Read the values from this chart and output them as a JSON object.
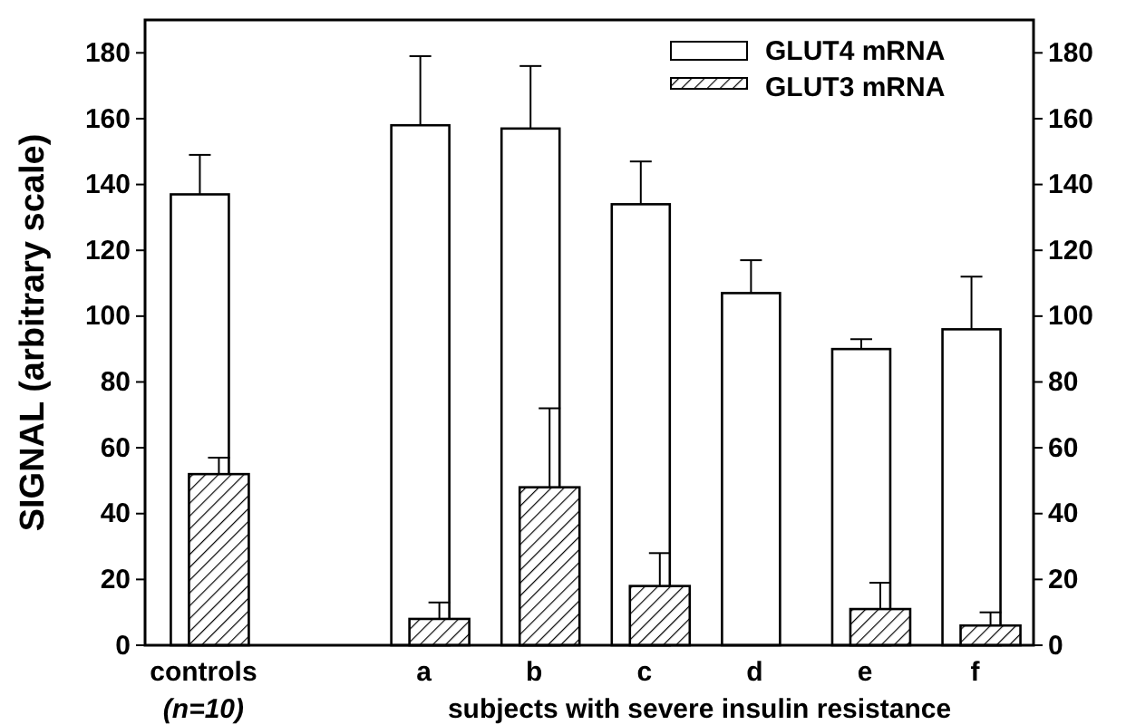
{
  "chart_data": {
    "type": "bar",
    "categories": [
      "controls",
      null,
      "a",
      "b",
      "c",
      "d",
      "e",
      "f"
    ],
    "series": [
      {
        "name": "GLUT4 mRNA",
        "color": "#ffffff",
        "values": [
          137,
          null,
          158,
          157,
          134,
          107,
          90,
          96
        ],
        "errors": [
          [
            137,
            149
          ],
          null,
          [
            158,
            179
          ],
          [
            157,
            176
          ],
          [
            134,
            147
          ],
          [
            107,
            117
          ],
          [
            90,
            93
          ],
          [
            96,
            112
          ]
        ]
      },
      {
        "name": "GLUT3 mRNA",
        "color": "#000000",
        "values": [
          52,
          null,
          8,
          48,
          18,
          null,
          11,
          6
        ],
        "errors": [
          [
            52,
            57
          ],
          null,
          [
            8,
            13
          ],
          [
            48,
            72
          ],
          [
            18,
            28
          ],
          null,
          [
            11,
            19
          ],
          [
            6,
            10
          ]
        ]
      }
    ],
    "ylabel": "SIGNAL (arbitrary scale)",
    "xlabel": "subjects with severe insulin resistance",
    "annotations": [
      "(n=10)"
    ],
    "ylim": [
      0,
      190
    ],
    "yticks": [
      0,
      20,
      40,
      60,
      80,
      100,
      120,
      140,
      160,
      180
    ],
    "y2lim": [
      0,
      190
    ],
    "y2ticks": [
      0,
      20,
      40,
      60,
      80,
      100,
      120,
      140,
      160,
      180
    ],
    "grid": false,
    "legend": "top right"
  }
}
